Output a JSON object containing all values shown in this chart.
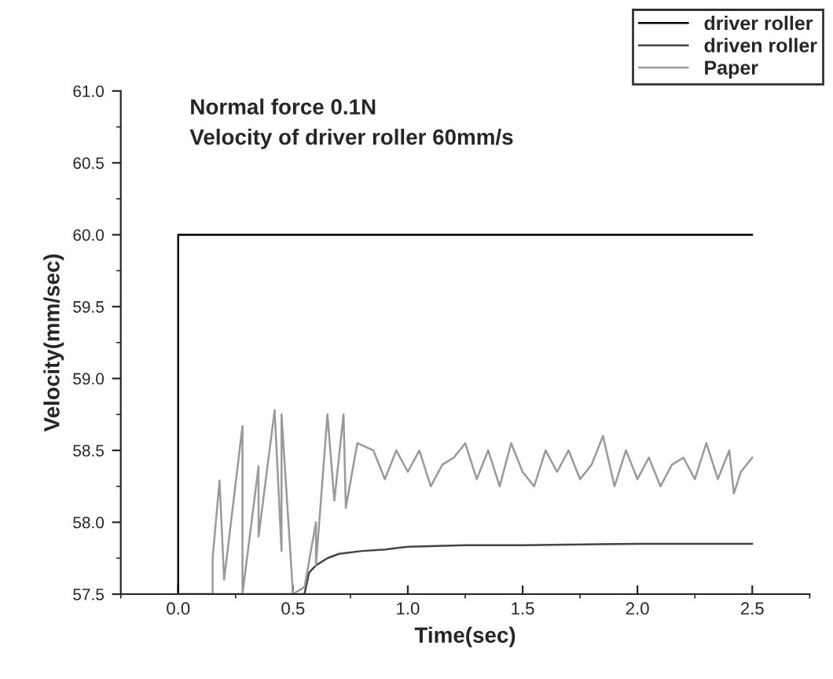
{
  "chart_data": {
    "type": "line",
    "title": "Normal force 0.1N",
    "subtitle": "Velocity of driver roller 60mm/s",
    "xlabel": "Time(sec)",
    "ylabel": "Velocity(mm/sec)",
    "xlim": [
      -0.25,
      2.75
    ],
    "ylim": [
      57.5,
      61.0
    ],
    "xticks": [
      {
        "value": 0,
        "label": "0.0"
      },
      {
        "value": 0.5,
        "label": "0.5"
      },
      {
        "value": 1,
        "label": "1.0"
      },
      {
        "value": 1.5,
        "label": "1.5"
      },
      {
        "value": 2,
        "label": "2.0"
      },
      {
        "value": 2.5,
        "label": "2.5"
      }
    ],
    "yticks": [
      {
        "value": 57.5,
        "label": "57.5"
      },
      {
        "value": 58,
        "label": "58.0"
      },
      {
        "value": 58.5,
        "label": "58.5"
      },
      {
        "value": 59,
        "label": "59.0"
      },
      {
        "value": 59.5,
        "label": "59.5"
      },
      {
        "value": 60,
        "label": "60.0"
      },
      {
        "value": 60.5,
        "label": "60.5"
      },
      {
        "value": 61,
        "label": "61.0"
      }
    ],
    "grid": false,
    "legend": "top right",
    "marker": "none",
    "line_style": "solid",
    "series": [
      {
        "name": "driver roller",
        "color": "#000000",
        "x": [
          0,
          0,
          2.5
        ],
        "values": [
          57.5,
          60,
          60
        ]
      },
      {
        "name": "driven roller",
        "color": "#444444",
        "x": [
          0,
          0.55,
          0.57,
          0.6,
          0.65,
          0.7,
          0.8,
          0.9,
          1.0,
          1.25,
          1.5,
          2.0,
          2.5
        ],
        "values": [
          57.5,
          57.5,
          57.65,
          57.7,
          57.75,
          57.78,
          57.8,
          57.81,
          57.83,
          57.84,
          57.84,
          57.85,
          57.85
        ]
      },
      {
        "name": "Paper",
        "color": "#999999",
        "x": [
          0,
          0.15,
          0.15,
          0.18,
          0.2,
          0.28,
          0.28,
          0.35,
          0.35,
          0.42,
          0.45,
          0.45,
          0.5,
          0.55,
          0.6,
          0.6,
          0.65,
          0.68,
          0.72,
          0.73,
          0.78,
          0.85,
          0.9,
          0.95,
          1.0,
          1.05,
          1.1,
          1.15,
          1.2,
          1.25,
          1.3,
          1.35,
          1.4,
          1.45,
          1.5,
          1.55,
          1.6,
          1.65,
          1.7,
          1.75,
          1.8,
          1.85,
          1.9,
          1.95,
          2.0,
          2.05,
          2.1,
          2.15,
          2.2,
          2.25,
          2.3,
          2.35,
          2.4,
          2.42,
          2.45,
          2.5
        ],
        "values": [
          57.5,
          57.5,
          57.75,
          58.29,
          57.6,
          58.67,
          57.5,
          58.39,
          57.9,
          58.78,
          57.8,
          58.75,
          57.5,
          57.55,
          58.0,
          57.7,
          58.75,
          58.15,
          58.75,
          58.1,
          58.55,
          58.5,
          58.3,
          58.5,
          58.35,
          58.5,
          58.25,
          58.4,
          58.45,
          58.55,
          58.3,
          58.5,
          58.25,
          58.55,
          58.35,
          58.25,
          58.5,
          58.35,
          58.5,
          58.3,
          58.4,
          58.6,
          58.25,
          58.5,
          58.3,
          58.45,
          58.25,
          58.4,
          58.45,
          58.3,
          58.55,
          58.3,
          58.5,
          58.2,
          58.35,
          58.45
        ]
      }
    ]
  }
}
